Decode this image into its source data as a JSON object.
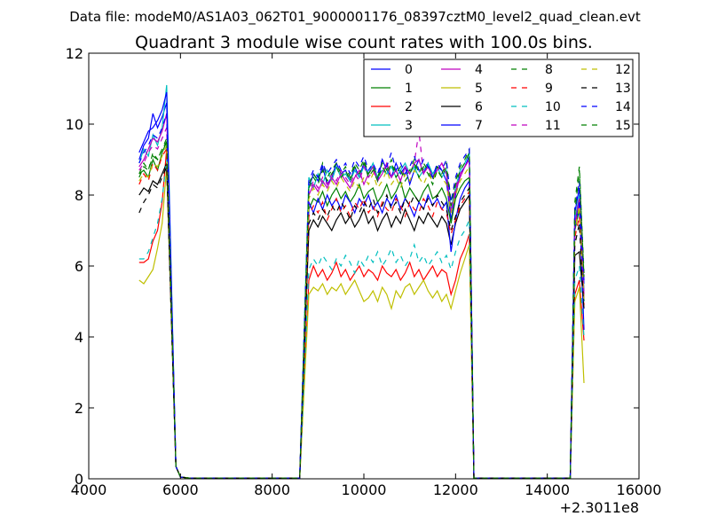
{
  "chart_data": {
    "type": "line",
    "suptitle": "Data file: modeM0/AS1A03_062T01_9000001176_08397cztM0_level2_quad_clean.evt",
    "title": "Quadrant 3 module wise count rates with 100.0s bins.",
    "xlabel": "",
    "ylabel": "",
    "x_offset_label": "+2.3011e8",
    "xlim": [
      4000,
      16000
    ],
    "ylim": [
      0,
      12
    ],
    "xticks": [
      "4000",
      "6000",
      "8000",
      "10000",
      "12000",
      "14000",
      "16000"
    ],
    "yticks": [
      "0",
      "2",
      "4",
      "6",
      "8",
      "10",
      "12"
    ],
    "grid": false,
    "legend_position": "top-right",
    "segments": [
      {
        "name": "seg1",
        "x_start": 5100,
        "x_step": 100,
        "n": 7
      },
      {
        "name": "seg2",
        "x_start": 8800,
        "x_step": 100,
        "n": 36
      },
      {
        "name": "seg3",
        "x_start": 14600,
        "x_step": 100,
        "n": 3
      }
    ],
    "series": [
      {
        "name": "0",
        "color": "#0000ff",
        "dash": "solid",
        "seg1": [
          9.0,
          9.4,
          9.6,
          10.3,
          9.9,
          10.2,
          10.6
        ],
        "seg2": [
          8.2,
          8.6,
          8.4,
          8.8,
          8.3,
          8.5,
          8.9,
          8.6,
          8.7,
          8.4,
          8.8,
          8.5,
          8.9,
          8.6,
          8.8,
          8.4,
          9.0,
          8.7,
          8.5,
          8.9,
          8.6,
          8.8,
          8.3,
          8.7,
          9.0,
          8.6,
          8.9,
          8.5,
          8.8,
          8.7,
          8.4,
          7.3,
          8.0,
          8.6,
          8.8,
          9.1
        ],
        "seg3": [
          7.5,
          8.2,
          5.5
        ]
      },
      {
        "name": "1",
        "color": "#008000",
        "dash": "solid",
        "seg1": [
          8.6,
          8.7,
          8.5,
          9.0,
          8.7,
          9.2,
          9.5
        ],
        "seg2": [
          7.6,
          7.9,
          7.8,
          8.1,
          7.7,
          8.0,
          8.2,
          7.9,
          8.1,
          7.8,
          8.0,
          8.3,
          7.9,
          8.1,
          8.2,
          7.8,
          8.0,
          8.3,
          7.9,
          8.1,
          8.4,
          7.9,
          8.2,
          8.0,
          7.8,
          8.1,
          8.3,
          7.9,
          8.0,
          8.2,
          7.9,
          7.2,
          7.9,
          8.2,
          8.4,
          8.5
        ],
        "seg3": [
          7.0,
          7.6,
          5.0
        ]
      },
      {
        "name": "2",
        "color": "#ff0000",
        "dash": "solid",
        "seg1": [
          6.1,
          6.1,
          6.2,
          6.7,
          7.0,
          7.8,
          9.3
        ],
        "seg2": [
          5.6,
          6.0,
          5.7,
          5.9,
          5.6,
          5.8,
          6.1,
          5.7,
          5.9,
          5.6,
          5.8,
          6.0,
          5.7,
          5.9,
          5.8,
          5.6,
          6.0,
          5.8,
          5.7,
          5.9,
          5.6,
          5.8,
          6.1,
          5.7,
          5.9,
          5.6,
          5.8,
          6.0,
          5.7,
          5.9,
          5.8,
          5.2,
          5.6,
          6.2,
          6.5,
          6.9
        ],
        "seg3": [
          5.2,
          5.6,
          3.9
        ]
      },
      {
        "name": "3",
        "color": "#00bfbf",
        "dash": "solid",
        "seg1": [
          8.9,
          9.3,
          9.1,
          9.7,
          9.4,
          9.9,
          11.1
        ],
        "seg2": [
          8.5,
          8.2,
          8.6,
          8.3,
          8.7,
          8.4,
          8.8,
          8.5,
          8.6,
          8.4,
          8.7,
          8.5,
          8.8,
          8.6,
          8.9,
          8.5,
          8.7,
          8.6,
          8.8,
          8.5,
          8.7,
          8.9,
          8.6,
          8.8,
          8.5,
          8.7,
          8.9,
          8.6,
          8.8,
          8.5,
          8.7,
          7.6,
          8.2,
          8.7,
          8.9,
          9.2
        ],
        "seg3": [
          7.3,
          8.0,
          5.3
        ]
      },
      {
        "name": "4",
        "color": "#bf00bf",
        "dash": "solid",
        "seg1": [
          8.8,
          9.0,
          9.3,
          9.6,
          9.5,
          9.8,
          10.3
        ],
        "seg2": [
          8.0,
          8.3,
          8.1,
          8.4,
          8.2,
          8.5,
          8.3,
          8.6,
          8.4,
          8.2,
          8.5,
          8.7,
          8.3,
          8.6,
          8.8,
          8.4,
          8.6,
          8.9,
          8.5,
          8.7,
          8.4,
          8.8,
          8.6,
          8.9,
          9.0,
          8.6,
          8.8,
          8.5,
          8.7,
          8.9,
          8.6,
          7.5,
          8.1,
          8.5,
          8.8,
          9.0
        ],
        "seg3": [
          7.2,
          7.9,
          5.2
        ]
      },
      {
        "name": "5",
        "color": "#bfbf00",
        "dash": "solid",
        "seg1": [
          5.6,
          5.5,
          5.7,
          5.9,
          6.5,
          7.2,
          8.8
        ],
        "seg2": [
          5.2,
          5.4,
          5.3,
          5.5,
          5.2,
          5.4,
          5.3,
          5.5,
          5.2,
          5.4,
          5.6,
          5.3,
          5.0,
          5.1,
          5.3,
          5.0,
          5.4,
          5.2,
          4.8,
          5.3,
          5.1,
          5.4,
          5.5,
          5.2,
          5.4,
          5.6,
          5.3,
          5.1,
          5.3,
          5.0,
          5.2,
          4.8,
          5.3,
          5.8,
          6.2,
          6.6
        ],
        "seg3": [
          5.0,
          5.4,
          2.7
        ]
      },
      {
        "name": "6",
        "color": "#000000",
        "dash": "solid",
        "seg1": [
          8.0,
          8.2,
          8.1,
          8.4,
          8.3,
          8.6,
          8.9
        ],
        "seg2": [
          7.0,
          7.3,
          7.1,
          7.4,
          7.2,
          7.0,
          7.3,
          7.5,
          7.2,
          7.4,
          7.1,
          7.3,
          7.6,
          7.2,
          7.4,
          7.0,
          7.3,
          7.5,
          7.1,
          7.4,
          7.2,
          7.6,
          7.3,
          7.0,
          7.4,
          7.2,
          7.5,
          7.3,
          7.1,
          7.4,
          7.2,
          6.6,
          7.2,
          7.6,
          7.8,
          8.0
        ],
        "seg3": [
          6.3,
          6.4,
          4.8
        ]
      },
      {
        "name": "7",
        "color": "#0000ff",
        "dash": "solid",
        "seg1": [
          9.2,
          9.5,
          9.8,
          9.9,
          10.1,
          10.4,
          10.9
        ],
        "seg2": [
          7.8,
          7.5,
          7.9,
          7.6,
          8.0,
          7.7,
          7.9,
          7.6,
          8.0,
          7.8,
          7.5,
          7.9,
          7.7,
          8.0,
          7.6,
          7.8,
          7.5,
          7.9,
          7.7,
          8.0,
          7.6,
          7.9,
          7.7,
          7.4,
          7.8,
          7.6,
          8.0,
          7.7,
          7.9,
          7.6,
          7.8,
          6.4,
          7.3,
          7.9,
          8.2,
          8.4
        ],
        "seg3": [
          7.1,
          7.8,
          4.2
        ]
      },
      {
        "name": "8",
        "color": "#008000",
        "dash": "dashed",
        "seg1": [
          8.5,
          8.8,
          8.7,
          9.1,
          9.0,
          9.3,
          9.5
        ],
        "seg2": [
          8.3,
          8.6,
          8.4,
          8.9,
          8.5,
          8.7,
          8.9,
          8.6,
          8.8,
          8.5,
          8.9,
          8.7,
          9.0,
          8.6,
          8.8,
          8.5,
          8.9,
          8.7,
          9.0,
          8.6,
          8.8,
          8.5,
          8.7,
          9.0,
          8.6,
          8.9,
          8.7,
          8.4,
          8.8,
          8.6,
          8.9,
          7.8,
          8.4,
          8.8,
          9.0,
          9.3
        ],
        "seg3": [
          7.8,
          8.8,
          5.8
        ]
      },
      {
        "name": "9",
        "color": "#ff0000",
        "dash": "dashed",
        "seg1": [
          8.3,
          8.6,
          8.4,
          8.9,
          8.7,
          9.1,
          9.3
        ],
        "seg2": [
          7.4,
          7.7,
          7.5,
          7.8,
          7.3,
          7.6,
          7.9,
          7.5,
          7.7,
          7.4,
          7.8,
          7.6,
          7.9,
          7.5,
          7.7,
          7.4,
          7.8,
          7.6,
          7.5,
          7.9,
          7.7,
          7.4,
          7.8,
          7.6,
          7.5,
          7.9,
          7.7,
          7.4,
          7.8,
          7.6,
          7.5,
          6.9,
          7.3,
          7.7,
          7.9,
          8.1
        ],
        "seg3": [
          6.8,
          7.4,
          4.9
        ]
      },
      {
        "name": "10",
        "color": "#00bfbf",
        "dash": "dashed",
        "seg1": [
          6.2,
          6.2,
          6.4,
          6.8,
          7.2,
          7.9,
          9.0
        ],
        "seg2": [
          5.9,
          6.2,
          6.0,
          6.3,
          6.1,
          5.9,
          6.2,
          6.0,
          6.3,
          6.1,
          5.8,
          6.2,
          6.0,
          6.3,
          6.1,
          6.4,
          6.0,
          6.2,
          6.5,
          6.1,
          6.3,
          6.0,
          6.2,
          6.6,
          6.1,
          6.3,
          6.0,
          6.2,
          6.4,
          6.1,
          6.3,
          5.9,
          6.4,
          6.8,
          7.0,
          7.3
        ],
        "seg3": [
          5.6,
          6.0,
          4.0
        ]
      },
      {
        "name": "11",
        "color": "#bf00bf",
        "dash": "dashed",
        "seg1": [
          8.7,
          8.9,
          9.2,
          9.4,
          9.3,
          9.6,
          9.9
        ],
        "seg2": [
          8.1,
          8.4,
          8.2,
          8.5,
          8.3,
          8.6,
          8.4,
          8.7,
          8.5,
          8.3,
          8.6,
          8.4,
          8.8,
          8.5,
          8.7,
          8.4,
          8.6,
          8.9,
          8.5,
          8.7,
          8.4,
          8.8,
          8.6,
          8.9,
          9.8,
          8.6,
          8.8,
          8.5,
          8.7,
          8.9,
          8.6,
          7.7,
          8.2,
          8.6,
          8.8,
          9.0
        ],
        "seg3": [
          7.1,
          7.9,
          5.1
        ]
      },
      {
        "name": "12",
        "color": "#bfbf00",
        "dash": "dashed",
        "seg1": [
          8.4,
          8.6,
          8.5,
          8.9,
          8.8,
          9.1,
          9.4
        ],
        "seg2": [
          7.9,
          8.2,
          8.0,
          8.3,
          8.1,
          8.4,
          8.2,
          8.5,
          8.3,
          8.1,
          8.4,
          8.2,
          8.5,
          8.3,
          8.6,
          8.2,
          8.4,
          8.7,
          8.3,
          8.5,
          8.2,
          8.6,
          8.4,
          8.7,
          8.5,
          8.3,
          8.6,
          8.4,
          8.7,
          8.5,
          8.3,
          7.5,
          8.0,
          8.4,
          8.6,
          8.8
        ],
        "seg3": [
          7.0,
          7.7,
          5.0
        ]
      },
      {
        "name": "13",
        "color": "#000000",
        "dash": "dashed",
        "seg1": [
          7.5,
          7.8,
          8.0,
          8.3,
          8.2,
          8.5,
          8.8
        ],
        "seg2": [
          7.2,
          7.5,
          7.3,
          7.6,
          7.4,
          7.7,
          7.5,
          7.8,
          7.6,
          7.3,
          7.7,
          7.5,
          7.8,
          7.6,
          7.9,
          7.5,
          7.7,
          8.0,
          7.6,
          7.8,
          7.5,
          7.9,
          7.7,
          8.0,
          7.8,
          7.6,
          7.9,
          7.7,
          8.0,
          7.8,
          7.6,
          7.0,
          7.4,
          7.8,
          8.0,
          8.2
        ],
        "seg3": [
          6.6,
          7.2,
          4.7
        ]
      },
      {
        "name": "14",
        "color": "#0000ff",
        "dash": "dashed",
        "seg1": [
          8.9,
          9.2,
          9.4,
          9.7,
          9.6,
          9.9,
          10.3
        ],
        "seg2": [
          8.4,
          8.7,
          8.5,
          8.9,
          8.6,
          8.8,
          9.0,
          8.7,
          8.9,
          8.6,
          9.0,
          8.8,
          9.1,
          8.7,
          8.9,
          8.6,
          9.0,
          8.8,
          9.2,
          8.7,
          8.9,
          8.6,
          8.8,
          9.1,
          8.7,
          9.0,
          8.8,
          8.5,
          8.9,
          8.7,
          9.0,
          7.8,
          8.5,
          8.9,
          9.1,
          9.3
        ],
        "seg3": [
          7.6,
          8.4,
          5.6
        ]
      },
      {
        "name": "15",
        "color": "#008000",
        "dash": "dashed",
        "seg1": [
          8.6,
          8.9,
          8.7,
          9.2,
          9.0,
          9.3,
          9.6
        ],
        "seg2": [
          8.2,
          8.5,
          8.3,
          8.7,
          8.4,
          8.6,
          8.8,
          8.5,
          8.7,
          8.4,
          8.8,
          8.6,
          8.9,
          8.5,
          8.7,
          8.4,
          8.8,
          8.6,
          8.9,
          8.5,
          8.7,
          8.4,
          8.6,
          8.9,
          8.5,
          8.8,
          8.6,
          8.3,
          8.7,
          8.5,
          8.8,
          7.7,
          8.3,
          8.7,
          8.9,
          9.2
        ],
        "seg3": [
          7.5,
          8.7,
          5.7
        ]
      }
    ]
  }
}
